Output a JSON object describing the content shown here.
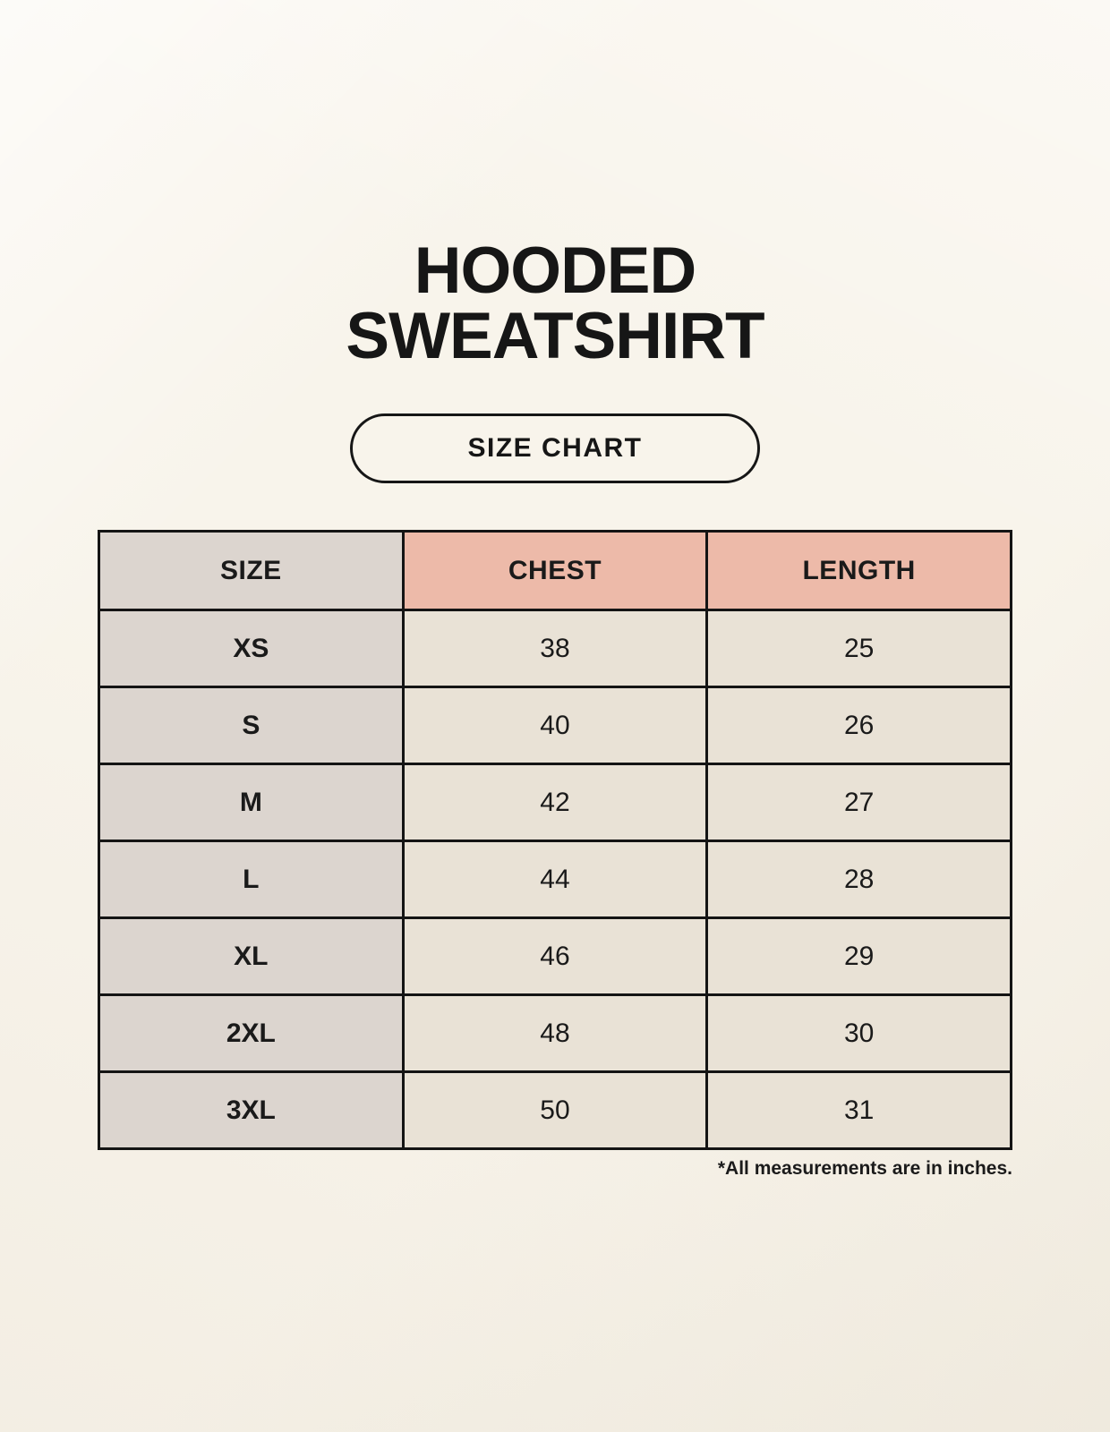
{
  "header": {
    "title_line1": "HOODED",
    "title_line2": "SWEATSHIRT",
    "badge_label": "SIZE CHART"
  },
  "chart_data": {
    "type": "table",
    "title": "HOODED SWEATSHIRT — SIZE CHART",
    "columns": [
      "SIZE",
      "CHEST",
      "LENGTH"
    ],
    "rows": [
      {
        "size": "XS",
        "chest": "38",
        "length": "25"
      },
      {
        "size": "S",
        "chest": "40",
        "length": "26"
      },
      {
        "size": "M",
        "chest": "42",
        "length": "27"
      },
      {
        "size": "L",
        "chest": "44",
        "length": "28"
      },
      {
        "size": "XL",
        "chest": "46",
        "length": "29"
      },
      {
        "size": "2XL",
        "chest": "48",
        "length": "30"
      },
      {
        "size": "3XL",
        "chest": "50",
        "length": "31"
      }
    ],
    "units_note": "*All measurements are in inches."
  },
  "colors": {
    "background": "#F8F4EB",
    "header_accent": "#EDBAA9",
    "size_column": "#DCD5CF",
    "cell": "#E9E2D6",
    "border": "#141414",
    "text": "#1A1A1A"
  }
}
